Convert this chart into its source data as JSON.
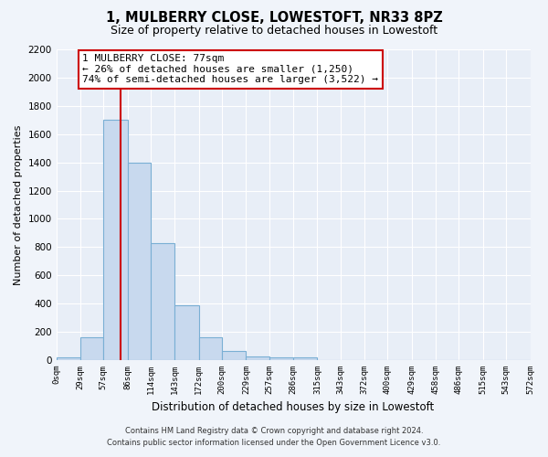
{
  "title": "1, MULBERRY CLOSE, LOWESTOFT, NR33 8PZ",
  "subtitle": "Size of property relative to detached houses in Lowestoft",
  "bar_values": [
    20,
    160,
    1700,
    1400,
    830,
    390,
    160,
    65,
    25,
    20,
    20,
    0,
    0,
    0,
    0,
    0,
    0,
    0,
    0,
    0
  ],
  "bin_edges": [
    0,
    29,
    57,
    86,
    114,
    143,
    172,
    200,
    229,
    257,
    286,
    315,
    343,
    372,
    400,
    429,
    458,
    486,
    515,
    543,
    572
  ],
  "tick_labels": [
    "0sqm",
    "29sqm",
    "57sqm",
    "86sqm",
    "114sqm",
    "143sqm",
    "172sqm",
    "200sqm",
    "229sqm",
    "257sqm",
    "286sqm",
    "315sqm",
    "343sqm",
    "372sqm",
    "400sqm",
    "429sqm",
    "458sqm",
    "486sqm",
    "515sqm",
    "543sqm",
    "572sqm"
  ],
  "bar_color": "#c8d9ee",
  "bar_edge_color": "#7aafd4",
  "ylabel": "Number of detached properties",
  "xlabel": "Distribution of detached houses by size in Lowestoft",
  "ylim": [
    0,
    2200
  ],
  "yticks": [
    0,
    200,
    400,
    600,
    800,
    1000,
    1200,
    1400,
    1600,
    1800,
    2000,
    2200
  ],
  "property_line_x": 77,
  "property_line_color": "#cc0000",
  "annotation_title": "1 MULBERRY CLOSE: 77sqm",
  "annotation_line1": "← 26% of detached houses are smaller (1,250)",
  "annotation_line2": "74% of semi-detached houses are larger (3,522) →",
  "footer_line1": "Contains HM Land Registry data © Crown copyright and database right 2024.",
  "footer_line2": "Contains public sector information licensed under the Open Government Licence v3.0.",
  "background_color": "#f0f4fa",
  "plot_bg_color": "#e8eef7",
  "grid_color": "#ffffff"
}
